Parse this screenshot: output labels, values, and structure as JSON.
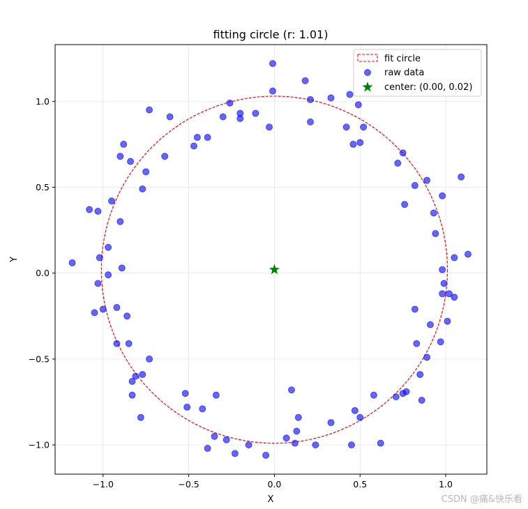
{
  "chart_data": {
    "type": "scatter",
    "title": "fitting circle (r: 1.01)",
    "xlabel": "X",
    "ylabel": "Y",
    "xlim": [
      -1.28,
      1.24
    ],
    "ylim": [
      -1.17,
      1.33
    ],
    "x_ticks": [
      -1.0,
      -0.5,
      0.0,
      0.5,
      1.0
    ],
    "x_tick_labels": [
      "−1.0",
      "−0.5",
      "0.0",
      "0.5",
      "1.0"
    ],
    "y_ticks": [
      -1.0,
      -0.5,
      0.0,
      0.5,
      1.0
    ],
    "y_tick_labels": [
      "−1.0",
      "−0.5",
      "0.0",
      "0.5",
      "1.0"
    ],
    "grid": true,
    "legend_position": "top-right",
    "legend": [
      "fit circle",
      "raw data",
      "center: (0.00, 0.02)"
    ],
    "colors": {
      "points": "#0000ff",
      "circle": "#ff0000",
      "center": "#008000"
    },
    "circle": {
      "cx": 0.0,
      "cy": 0.02,
      "r": 1.01
    },
    "center": {
      "x": 0.0,
      "y": 0.02
    },
    "points": [
      [
        -0.01,
        1.22
      ],
      [
        0.18,
        1.12
      ],
      [
        -0.01,
        1.06
      ],
      [
        0.21,
        1.01
      ],
      [
        0.33,
        1.02
      ],
      [
        0.44,
        1.04
      ],
      [
        0.49,
        0.98
      ],
      [
        -0.26,
        0.99
      ],
      [
        -0.2,
        0.93
      ],
      [
        -0.11,
        0.93
      ],
      [
        -0.3,
        0.91
      ],
      [
        -0.2,
        0.9
      ],
      [
        -0.03,
        0.85
      ],
      [
        0.21,
        0.88
      ],
      [
        0.42,
        0.85
      ],
      [
        0.52,
        0.85
      ],
      [
        0.46,
        0.75
      ],
      [
        0.5,
        0.76
      ],
      [
        -0.73,
        0.95
      ],
      [
        -0.61,
        0.91
      ],
      [
        -0.45,
        0.79
      ],
      [
        -0.39,
        0.79
      ],
      [
        -0.47,
        0.74
      ],
      [
        -0.64,
        0.68
      ],
      [
        -0.88,
        0.75
      ],
      [
        -0.9,
        0.68
      ],
      [
        -0.84,
        0.65
      ],
      [
        -0.75,
        0.59
      ],
      [
        -0.77,
        0.49
      ],
      [
        0.75,
        0.7
      ],
      [
        0.72,
        0.64
      ],
      [
        0.89,
        0.54
      ],
      [
        0.82,
        0.51
      ],
      [
        1.09,
        0.56
      ],
      [
        0.98,
        0.45
      ],
      [
        0.76,
        0.4
      ],
      [
        -1.08,
        0.37
      ],
      [
        -1.03,
        0.36
      ],
      [
        -0.95,
        0.42
      ],
      [
        -0.9,
        0.3
      ],
      [
        0.93,
        0.35
      ],
      [
        0.94,
        0.23
      ],
      [
        -0.97,
        0.15
      ],
      [
        -1.02,
        0.09
      ],
      [
        -0.89,
        0.03
      ],
      [
        -1.18,
        0.06
      ],
      [
        1.05,
        0.09
      ],
      [
        1.13,
        0.11
      ],
      [
        0.98,
        0.02
      ],
      [
        -0.97,
        -0.01
      ],
      [
        -1.03,
        -0.06
      ],
      [
        0.99,
        -0.06
      ],
      [
        0.98,
        -0.12
      ],
      [
        1.02,
        -0.12
      ],
      [
        1.05,
        -0.14
      ],
      [
        -0.92,
        -0.2
      ],
      [
        -1.0,
        -0.21
      ],
      [
        -1.05,
        -0.23
      ],
      [
        -0.86,
        -0.25
      ],
      [
        0.82,
        -0.21
      ],
      [
        1.01,
        -0.28
      ],
      [
        0.91,
        -0.3
      ],
      [
        -0.92,
        -0.41
      ],
      [
        -0.85,
        -0.41
      ],
      [
        0.83,
        -0.41
      ],
      [
        0.97,
        -0.4
      ],
      [
        -0.73,
        -0.5
      ],
      [
        0.89,
        -0.49
      ],
      [
        -0.81,
        -0.6
      ],
      [
        -0.77,
        -0.59
      ],
      [
        -0.83,
        -0.63
      ],
      [
        0.85,
        -0.59
      ],
      [
        -0.83,
        -0.71
      ],
      [
        -0.52,
        -0.7
      ],
      [
        -0.34,
        -0.71
      ],
      [
        0.1,
        -0.68
      ],
      [
        0.58,
        -0.71
      ],
      [
        0.71,
        -0.72
      ],
      [
        0.77,
        -0.69
      ],
      [
        0.75,
        -0.7
      ],
      [
        0.86,
        -0.74
      ],
      [
        -0.78,
        -0.84
      ],
      [
        -0.51,
        -0.78
      ],
      [
        -0.42,
        -0.79
      ],
      [
        0.14,
        -0.84
      ],
      [
        0.47,
        -0.8
      ],
      [
        0.5,
        -0.84
      ],
      [
        -0.35,
        -0.95
      ],
      [
        -0.28,
        -0.97
      ],
      [
        -0.39,
        -1.02
      ],
      [
        -0.15,
        -1.0
      ],
      [
        -0.23,
        -1.05
      ],
      [
        -0.05,
        -1.06
      ],
      [
        0.07,
        -0.96
      ],
      [
        0.13,
        -0.92
      ],
      [
        0.12,
        -0.99
      ],
      [
        0.24,
        -1.0
      ],
      [
        0.33,
        -0.87
      ],
      [
        0.45,
        -1.0
      ],
      [
        0.62,
        -0.99
      ]
    ]
  },
  "watermark": "CSDN @痛&快乐看"
}
